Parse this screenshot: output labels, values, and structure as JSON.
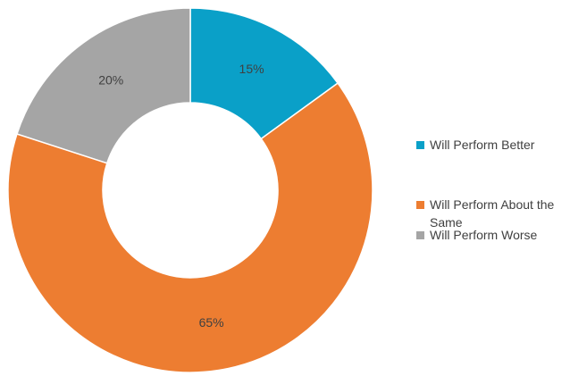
{
  "chart_data": {
    "type": "pie",
    "donut": true,
    "categories": [
      "Will Perform Better",
      "Will Perform About the Same",
      "Will Perform Worse"
    ],
    "values": [
      15,
      65,
      20
    ],
    "data_labels": [
      "15%",
      "65%",
      "20%"
    ],
    "colors": [
      "#0aa0c8",
      "#ed7d31",
      "#a5a5a5"
    ],
    "legend_position": "right"
  }
}
